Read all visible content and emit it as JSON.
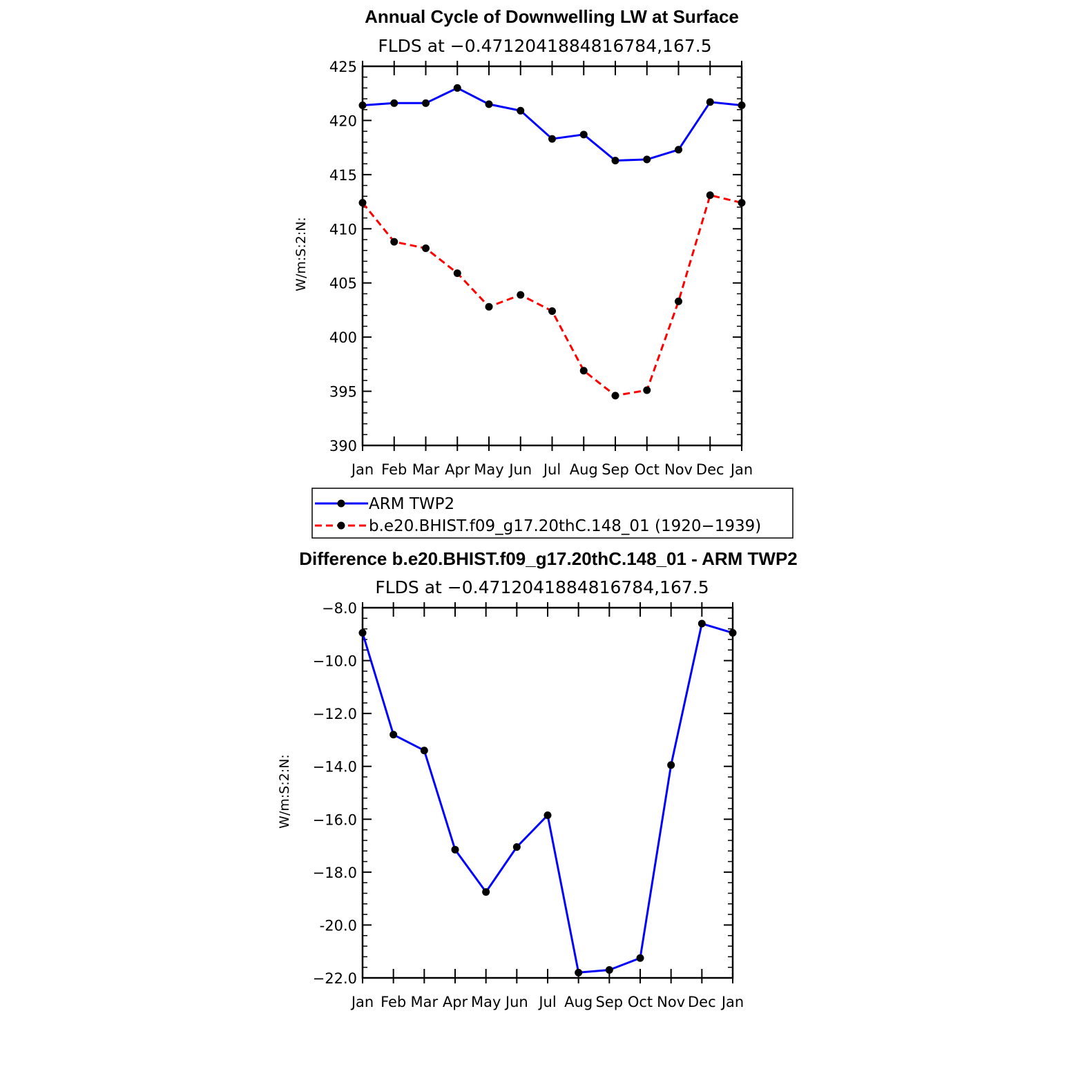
{
  "colors": {
    "obs": "#0000ff",
    "model": "#ff0000",
    "diff": "#0000ff",
    "marker": "#000000"
  },
  "chart_data": [
    {
      "type": "line",
      "title": "Annual Cycle of Downwelling LW at Surface",
      "subtitle": "FLDS at −0.4712041884816784,167.5",
      "ylabel": "W/m:S:2:N:",
      "xlabel": "",
      "categories": [
        "Jan",
        "Feb",
        "Mar",
        "Apr",
        "May",
        "Jun",
        "Jul",
        "Aug",
        "Sep",
        "Oct",
        "Nov",
        "Dec",
        "Jan"
      ],
      "ylim": [
        390,
        425
      ],
      "yticks": [
        390,
        395,
        400,
        405,
        410,
        415,
        420,
        425
      ],
      "ytick_labels": [
        "390",
        "395",
        "400",
        "405",
        "410",
        "415",
        "420",
        "425"
      ],
      "series": [
        {
          "name": "ARM TWP2",
          "style": "solid",
          "color": "#0000ff",
          "values": [
            421.4,
            421.6,
            421.6,
            423.0,
            421.5,
            420.9,
            418.3,
            418.7,
            416.3,
            416.4,
            417.3,
            421.7,
            421.4
          ]
        },
        {
          "name": "b.e20.BHIST.f09_g17.20thC.148_01 (1920−1939)",
          "style": "dashed",
          "color": "#ff0000",
          "values": [
            412.4,
            408.8,
            408.2,
            405.9,
            402.8,
            403.9,
            402.4,
            396.9,
            394.6,
            395.1,
            403.3,
            413.1,
            412.4
          ]
        }
      ],
      "legend": "below"
    },
    {
      "type": "line",
      "title": "Difference b.e20.BHIST.f09_g17.20thC.148_01 - ARM TWP2",
      "subtitle": "FLDS at −0.4712041884816784,167.5",
      "ylabel": "W/m:S:2:N:",
      "xlabel": "",
      "categories": [
        "Jan",
        "Feb",
        "Mar",
        "Apr",
        "May",
        "Jun",
        "Jul",
        "Aug",
        "Sep",
        "Oct",
        "Nov",
        "Dec",
        "Jan"
      ],
      "ylim": [
        -22,
        -8
      ],
      "yticks": [
        -22,
        -20,
        -18,
        -16,
        -14,
        -12,
        -10,
        -8
      ],
      "ytick_labels": [
        "−22.0",
        "-20.0",
        "−18.0",
        "−16.0",
        "−14.0",
        "−12.0",
        "−10.0",
        "−8.0"
      ],
      "series": [
        {
          "style": "solid",
          "color": "#0000ff",
          "values": [
            -8.95,
            -12.8,
            -13.4,
            -17.15,
            -18.75,
            -17.05,
            -15.85,
            -21.8,
            -21.7,
            -21.25,
            -13.95,
            -8.6,
            -8.95
          ]
        }
      ]
    }
  ]
}
